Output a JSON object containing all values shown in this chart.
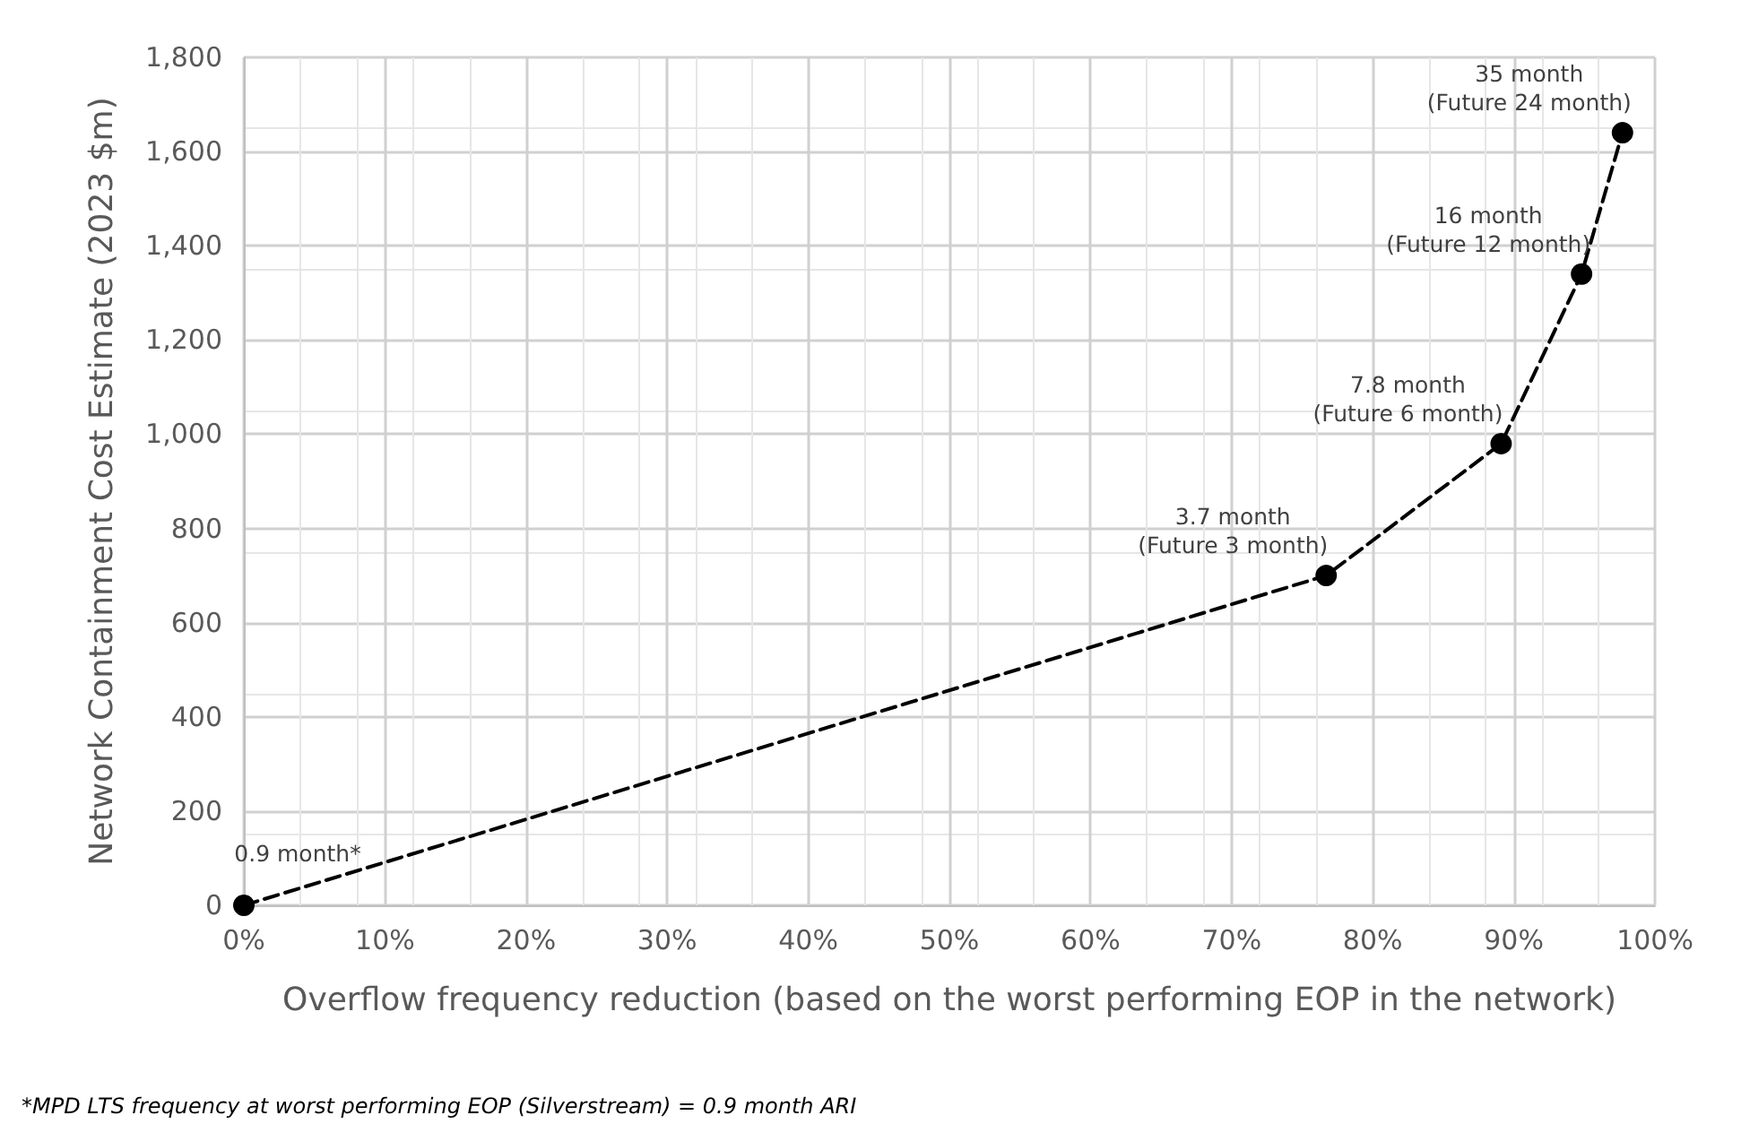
{
  "chart_data": {
    "type": "line",
    "xlabel": "Overflow frequency reduction (based on the worst performing EOP in the network)",
    "ylabel": "Network Containment Cost Estimate (2023 $m)",
    "x": [
      0,
      76.7,
      89.1,
      94.8,
      97.7
    ],
    "series": [
      {
        "color": "#000000",
        "values": [
          0,
          700,
          980,
          1340,
          1640
        ]
      }
    ],
    "marker": "circle",
    "line_style": "dashed",
    "grid": true,
    "xlim": [
      0,
      100
    ],
    "ylim": [
      0,
      1800
    ],
    "xticks": [
      {
        "value": 0,
        "label": "0%"
      },
      {
        "value": 10,
        "label": "10%"
      },
      {
        "value": 20,
        "label": "20%"
      },
      {
        "value": 30,
        "label": "30%"
      },
      {
        "value": 40,
        "label": "40%"
      },
      {
        "value": 50,
        "label": "50%"
      },
      {
        "value": 60,
        "label": "60%"
      },
      {
        "value": 70,
        "label": "70%"
      },
      {
        "value": 80,
        "label": "80%"
      },
      {
        "value": 90,
        "label": "90%"
      },
      {
        "value": 100,
        "label": "100%"
      }
    ],
    "yticks": [
      0,
      200,
      400,
      600,
      800,
      {
        "value": 1000,
        "label": "1,000"
      },
      {
        "value": 1200,
        "label": "1,200"
      },
      {
        "value": 1400,
        "label": "1,400"
      },
      {
        "value": 1600,
        "label": "1,600"
      },
      {
        "value": 1800,
        "label": "1,800"
      }
    ],
    "annotations": [
      {
        "text": "0.9 month*",
        "x": 0,
        "y": 0
      },
      {
        "text": "3.7 month\n(Future 3 month)",
        "x": 76.7,
        "y": 700
      },
      {
        "text": "7.8 month\n(Future 6 month)",
        "x": 89.1,
        "y": 980
      },
      {
        "text": "16 month\n(Future 12 month)",
        "x": 94.8,
        "y": 1340
      },
      {
        "text": "35 month\n(Future 24 month)",
        "x": 97.7,
        "y": 1640
      },
      "*MPD LTS frequency at worst performing EOP (Silverstream) = 0.9 month ARI"
    ]
  }
}
